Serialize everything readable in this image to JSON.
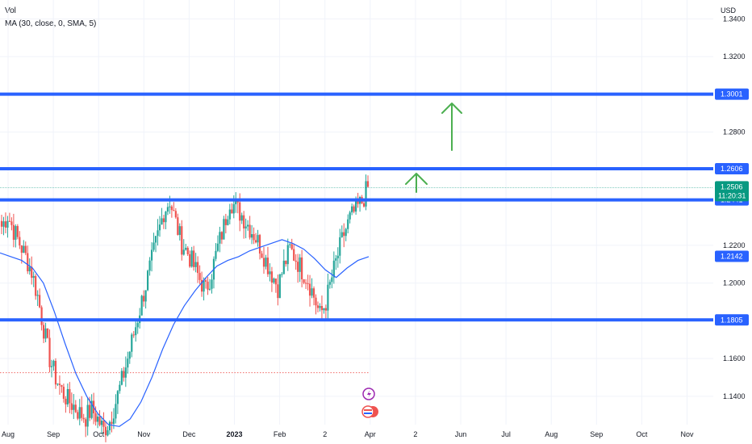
{
  "legend": {
    "vol": "Vol",
    "ma": "MA (30, close, 0, SMA, 5)"
  },
  "currency": "USD",
  "colors": {
    "up": "#26a69a",
    "down": "#ef5350",
    "level": "#2962ff",
    "ma": "#2962ff",
    "arrow": "#4caf50",
    "last_price": "#089981",
    "axis_text": "#131722"
  },
  "chart_data": {
    "type": "line",
    "ylim": [
      1.125,
      1.35
    ],
    "y_ticks": [
      "1.1400",
      "1.1600",
      "1.2000",
      "1.2200",
      "1.2800",
      "1.3200",
      "1.3400"
    ],
    "x_ticks": [
      {
        "label": "Aug",
        "bold": false
      },
      {
        "label": "Sep",
        "bold": false
      },
      {
        "label": "Oct",
        "bold": false
      },
      {
        "label": "Nov",
        "bold": false
      },
      {
        "label": "Dec",
        "bold": false
      },
      {
        "label": "2023",
        "bold": true
      },
      {
        "label": "Feb",
        "bold": false
      },
      {
        "label": "2",
        "bold": false
      },
      {
        "label": "Apr",
        "bold": false
      },
      {
        "label": "2",
        "bold": false
      },
      {
        "label": "Jun",
        "bold": false
      },
      {
        "label": "Jul",
        "bold": false
      },
      {
        "label": "Aug",
        "bold": false
      },
      {
        "label": "Sep",
        "bold": false
      },
      {
        "label": "Oct",
        "bold": false
      },
      {
        "label": "Nov",
        "bold": false
      }
    ],
    "series": [
      {
        "type": "line",
        "values": [
          1.216,
          1.214,
          1.212,
          1.208,
          1.2,
          1.185,
          1.168,
          1.152,
          1.14,
          1.131,
          1.125,
          1.124,
          1.128,
          1.137,
          1.15,
          1.165,
          1.178,
          1.188,
          1.196,
          1.203,
          1.209,
          1.212,
          1.214,
          1.217,
          1.219,
          1.221,
          1.223,
          1.221,
          1.218,
          1.213,
          1.207,
          1.203,
          1.208,
          1.212,
          1.214
        ]
      }
    ],
    "price_path": [
      1.23,
      1.236,
      1.228,
      1.221,
      1.214,
      1.206,
      1.193,
      1.176,
      1.16,
      1.15,
      1.143,
      1.138,
      1.135,
      1.131,
      1.129,
      1.133,
      1.128,
      1.122,
      1.127,
      1.137,
      1.148,
      1.16,
      1.173,
      1.186,
      1.199,
      1.212,
      1.225,
      1.238,
      1.244,
      1.232,
      1.221,
      1.216,
      1.209,
      1.202,
      1.196,
      1.206,
      1.219,
      1.23,
      1.244,
      1.24,
      1.236,
      1.231,
      1.226,
      1.22,
      1.212,
      1.205,
      1.198,
      1.209,
      1.218,
      1.213,
      1.207,
      1.202,
      1.193,
      1.183,
      1.19,
      1.203,
      1.215,
      1.226,
      1.234,
      1.239,
      1.243,
      1.251
    ],
    "levels": [
      {
        "value": 1.3001,
        "label": "1.3001"
      },
      {
        "value": 1.2606,
        "label": "1.2606"
      },
      {
        "value": 1.2441,
        "label": "1.2441"
      },
      {
        "value": 1.1805,
        "label": "1.1805"
      }
    ],
    "ma_last": {
      "value": 1.2142,
      "label": "1.2142"
    },
    "last_price": {
      "value": 1.2506,
      "label": "1.2506",
      "countdown": "11:20:31"
    },
    "dotted_level": 1.1525
  }
}
